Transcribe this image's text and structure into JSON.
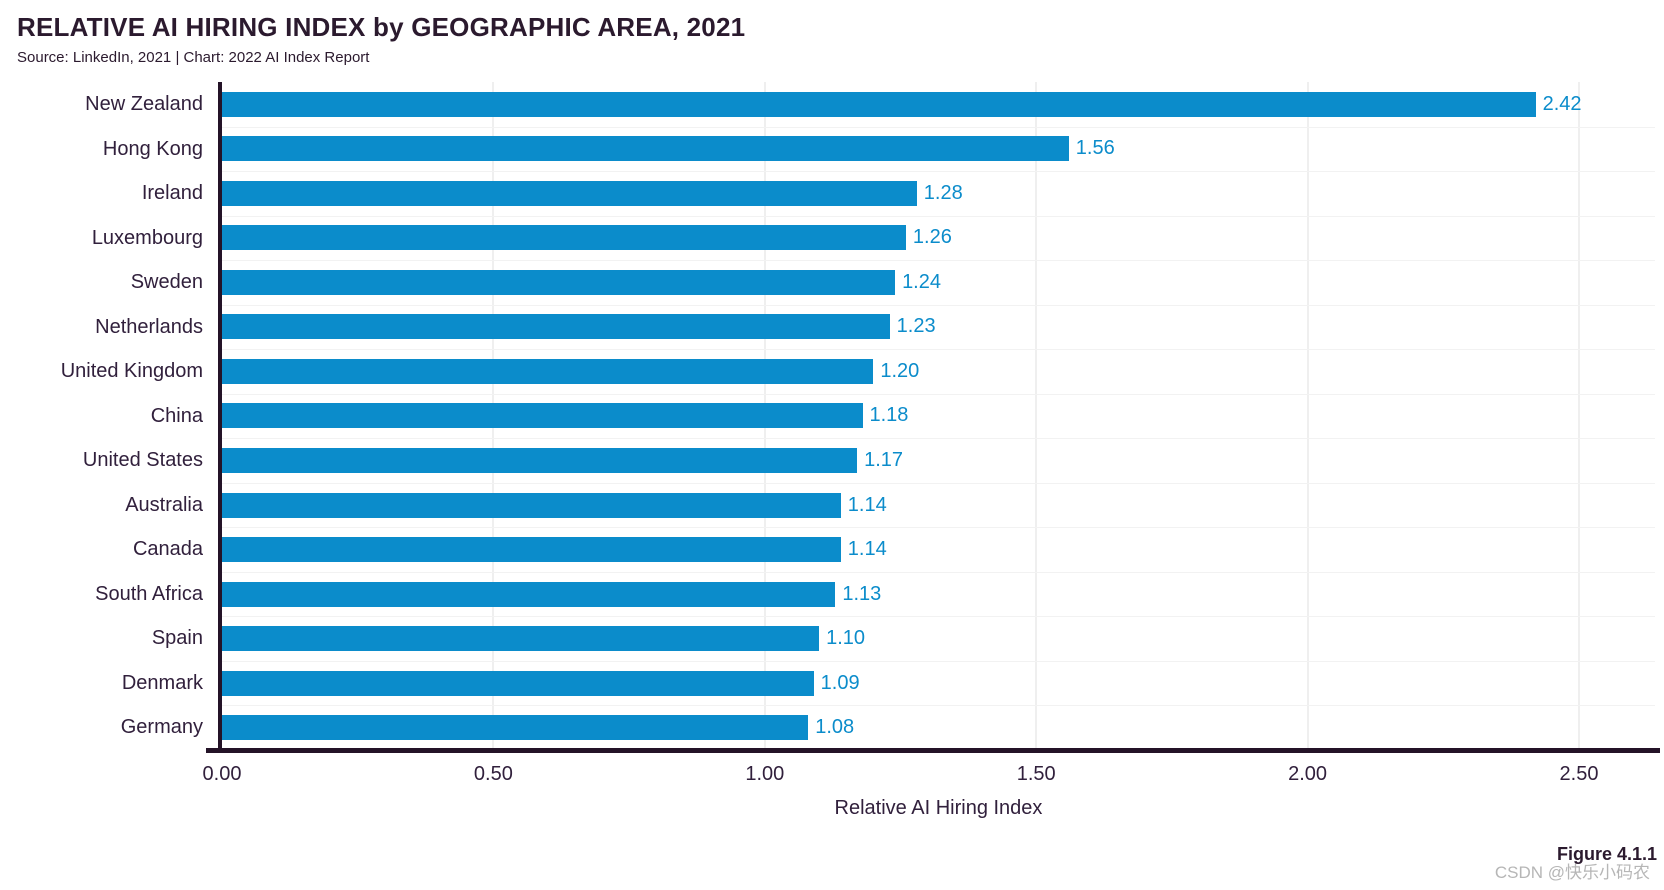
{
  "header": {
    "title": "RELATIVE AI HIRING INDEX by GEOGRAPHIC AREA, 2021",
    "source_line": "Source: LinkedIn, 2021 | Chart: 2022 AI Index Report"
  },
  "chart_data": {
    "type": "bar",
    "orientation": "horizontal",
    "title": "RELATIVE AI HIRING INDEX by GEOGRAPHIC AREA, 2021",
    "categories": [
      "New Zealand",
      "Hong Kong",
      "Ireland",
      "Luxembourg",
      "Sweden",
      "Netherlands",
      "United Kingdom",
      "China",
      "United States",
      "Australia",
      "Canada",
      "South Africa",
      "Spain",
      "Denmark",
      "Germany"
    ],
    "values": [
      2.42,
      1.56,
      1.28,
      1.26,
      1.24,
      1.23,
      1.2,
      1.18,
      1.17,
      1.14,
      1.14,
      1.13,
      1.1,
      1.09,
      1.08
    ],
    "value_labels": [
      "2.42",
      "1.56",
      "1.28",
      "1.26",
      "1.24",
      "1.23",
      "1.20",
      "1.18",
      "1.17",
      "1.14",
      "1.14",
      "1.13",
      "1.10",
      "1.09",
      "1.08"
    ],
    "xlabel": "Relative AI Hiring Index",
    "xlim": [
      0,
      2.64
    ],
    "xticks": [
      0.5,
      1.0,
      1.5,
      2.0,
      2.5
    ],
    "xtick_labels": [
      "0.00",
      "0.50",
      "1.00",
      "1.50",
      "2.00",
      "2.50"
    ],
    "xtick_values": [
      0.0,
      0.5,
      1.0,
      1.5,
      2.0,
      2.5
    ],
    "grid": true,
    "legend": false,
    "bar_color": "#0b8ccb",
    "value_label_color": "#0b8ccb",
    "axis_text_color": "#31203c",
    "axis_line_color": "#241328",
    "gridline_color": "#efefef",
    "row_gridline_color": "#f2f2f2"
  },
  "footer": {
    "figure_label": "Figure 4.1.1",
    "watermark": "CSDN @快乐小码农"
  }
}
